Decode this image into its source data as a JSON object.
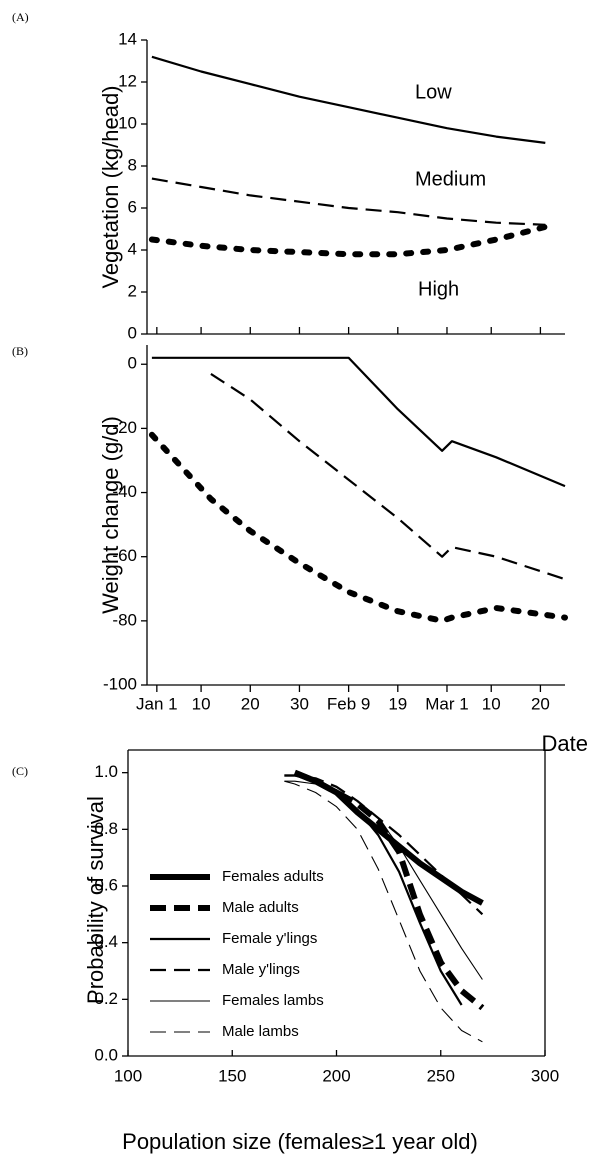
{
  "chart_data": [
    {
      "type": "line",
      "panel_label": "(A)",
      "y_label": "Vegetation (kg/head)",
      "x": [
        0,
        10,
        20,
        30,
        40,
        50,
        60,
        70,
        80
      ],
      "xlim": [
        -1,
        84
      ],
      "xticks": [
        1,
        10,
        20,
        30,
        40,
        50,
        60,
        69,
        79
      ],
      "xtick_labels": false,
      "ylim": [
        0,
        14
      ],
      "yticks": [
        0,
        2,
        4,
        6,
        8,
        10,
        12,
        14
      ],
      "series": [
        {
          "name": "Low",
          "color": "#000000",
          "style": "solid",
          "weight": "medium",
          "values": [
            13.2,
            12.5,
            11.9,
            11.3,
            10.8,
            10.3,
            9.8,
            9.4,
            9.1
          ]
        },
        {
          "name": "Medium",
          "color": "#000000",
          "style": "dashed",
          "weight": "medium",
          "values": [
            7.4,
            7.0,
            6.6,
            6.3,
            6.0,
            5.8,
            5.5,
            5.3,
            5.2
          ]
        },
        {
          "name": "High",
          "color": "#000000",
          "style": "dotted",
          "weight": "thick",
          "values": [
            4.5,
            4.2,
            4.0,
            3.9,
            3.8,
            3.8,
            4.0,
            4.5,
            5.1
          ]
        }
      ]
    },
    {
      "type": "line",
      "panel_label": "(B)",
      "y_label": "Weight change (g/d)",
      "x_label": "Date",
      "x": [
        0,
        12,
        20,
        30,
        40,
        50,
        59,
        61,
        70,
        84
      ],
      "xlim": [
        -1,
        84
      ],
      "xticks": [
        {
          "value": 1,
          "label": "Jan 1"
        },
        10,
        20,
        30,
        {
          "value": 40,
          "label": "Feb 9"
        },
        {
          "value": 50,
          "label": "19"
        },
        {
          "value": 60,
          "label": "Mar 1"
        },
        {
          "value": 69,
          "label": "10"
        },
        {
          "value": 79,
          "label": "20"
        }
      ],
      "xtick_labels": true,
      "ylim": [
        -100,
        6
      ],
      "yticks": [
        -100,
        -80,
        -60,
        -40,
        -20,
        0
      ],
      "series": [
        {
          "color": "#000000",
          "style": "solid",
          "weight": "medium",
          "values": [
            2,
            2,
            2,
            2,
            2,
            -14,
            -27,
            -24,
            -29,
            -38
          ]
        },
        {
          "color": "#000000",
          "style": "dashed",
          "weight": "medium",
          "values": [
            null,
            -3,
            -11,
            -24,
            -36,
            -48,
            -60,
            -57,
            -60,
            -67
          ]
        },
        {
          "color": "#000000",
          "style": "dotted",
          "weight": "thick",
          "values": [
            -22,
            -42,
            -52,
            -62,
            -71,
            -77,
            -80,
            -79,
            -76,
            -79
          ]
        }
      ]
    },
    {
      "type": "line",
      "panel_label": "(C)",
      "y_label": "Probability of survival",
      "x_label": "Population size (females≥1 year old)",
      "x": [
        175,
        180,
        190,
        200,
        210,
        220,
        230,
        240,
        250,
        260,
        270
      ],
      "xlim": [
        100,
        300
      ],
      "xticks": [
        100,
        150,
        200,
        250,
        300
      ],
      "xtick_labels": true,
      "ylim": [
        0,
        1.08
      ],
      "yticks": [
        {
          "value": 0,
          "label": "0.0"
        },
        0.2,
        0.4,
        0.6,
        0.8,
        {
          "value": 1,
          "label": "1.0"
        }
      ],
      "legend": "left",
      "series": [
        {
          "name": "Females adults",
          "color": "#000000",
          "style": "solid",
          "weight": "thick",
          "values": [
            null,
            1.0,
            0.97,
            0.93,
            0.86,
            0.8,
            0.74,
            0.68,
            0.63,
            0.58,
            0.54
          ]
        },
        {
          "name": "Male adults",
          "color": "#000000",
          "style": "dashed",
          "weight": "thick",
          "values": [
            null,
            1.0,
            0.97,
            0.93,
            0.89,
            0.83,
            0.72,
            0.5,
            0.33,
            0.23,
            0.17
          ]
        },
        {
          "name": "Female y'lings",
          "color": "#000000",
          "style": "solid",
          "weight": "medium",
          "values": [
            0.99,
            0.99,
            0.97,
            0.93,
            0.87,
            0.78,
            0.65,
            0.47,
            0.3,
            0.18,
            null
          ]
        },
        {
          "name": "Male y'lings",
          "color": "#000000",
          "style": "dashed",
          "weight": "medium",
          "values": [
            0.99,
            0.99,
            0.98,
            0.95,
            0.9,
            0.84,
            0.78,
            0.71,
            0.64,
            0.57,
            0.5
          ]
        },
        {
          "name": "Females lambs",
          "color": "#000000",
          "style": "solid",
          "weight": "thin",
          "values": [
            0.97,
            0.97,
            0.96,
            0.94,
            0.9,
            0.84,
            0.74,
            0.62,
            0.5,
            0.38,
            0.27
          ]
        },
        {
          "name": "Male lambs",
          "color": "#000000",
          "style": "dashed",
          "weight": "thin",
          "values": [
            0.97,
            0.96,
            0.93,
            0.88,
            0.8,
            0.66,
            0.48,
            0.3,
            0.17,
            0.09,
            0.05
          ]
        }
      ]
    }
  ]
}
